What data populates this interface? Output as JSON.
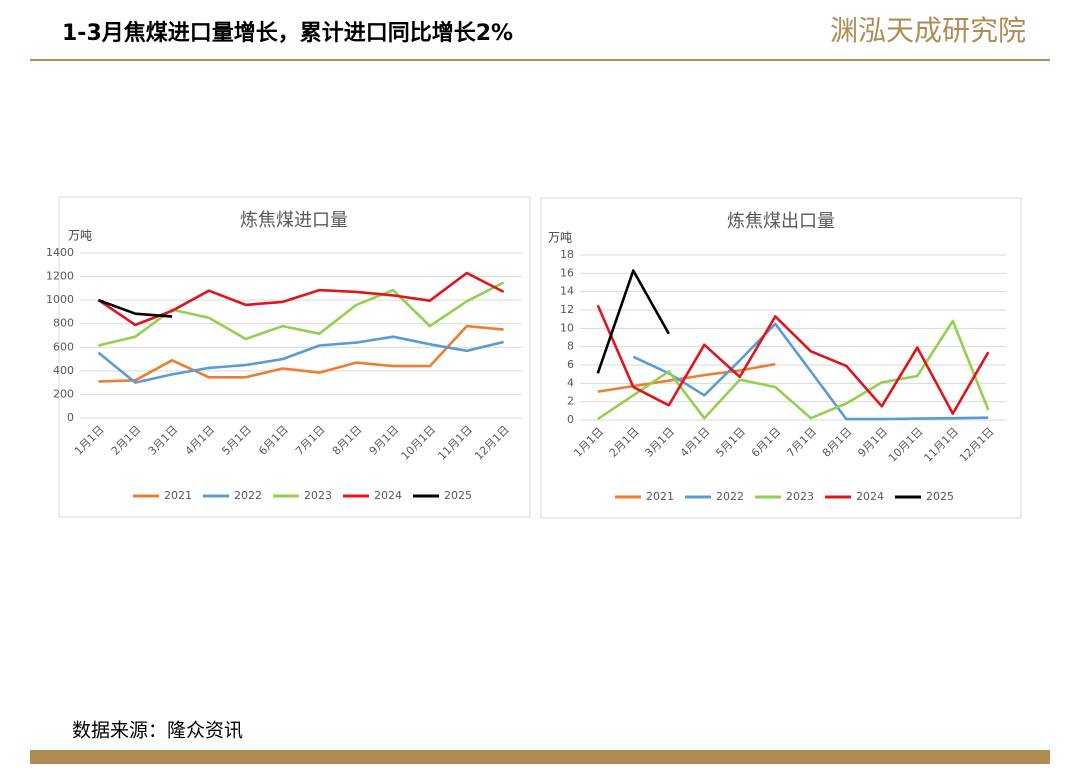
{
  "header": {
    "title": "1-3月焦煤进口量增长，累计进口同比增长2%",
    "logo": "渊泓天成研究院"
  },
  "source": "数据来源：隆众资讯",
  "chart_data": [
    {
      "type": "line",
      "title": "炼焦煤进口量",
      "ylabel": "万吨",
      "categories": [
        "1月1日",
        "2月1日",
        "3月1日",
        "4月1日",
        "5月1日",
        "6月1日",
        "7月1日",
        "8月1日",
        "9月1日",
        "10月1日",
        "11月1日",
        "12月1日"
      ],
      "ylim": [
        0,
        1400
      ],
      "yticks": [
        0,
        200,
        400,
        600,
        800,
        1000,
        1200,
        1400
      ],
      "grid": true,
      "legend": "bottom",
      "series": [
        {
          "name": "2021",
          "color": "#ed7d31",
          "values": [
            310,
            320,
            490,
            345,
            345,
            420,
            385,
            470,
            440,
            440,
            780,
            750
          ]
        },
        {
          "name": "2022",
          "color": "#5b9bd5",
          "values": [
            555,
            300,
            370,
            425,
            450,
            500,
            615,
            640,
            690,
            625,
            570,
            645
          ]
        },
        {
          "name": "2023",
          "color": "#92d050",
          "values": [
            615,
            690,
            920,
            850,
            670,
            780,
            715,
            960,
            1085,
            780,
            990,
            1150
          ]
        },
        {
          "name": "2024",
          "color": "#e2141b",
          "values": [
            1000,
            790,
            910,
            1080,
            960,
            985,
            1085,
            1070,
            1040,
            995,
            1230,
            1070
          ]
        },
        {
          "name": "2025",
          "color": "#000000",
          "values": [
            1000,
            885,
            860,
            null,
            null,
            null,
            null,
            null,
            null,
            null,
            null,
            null
          ]
        }
      ]
    },
    {
      "type": "line",
      "title": "炼焦煤出口量",
      "ylabel": "万吨",
      "categories": [
        "1月1日",
        "2月1日",
        "3月1日",
        "4月1日",
        "5月1日",
        "6月1日",
        "7月1日",
        "8月1日",
        "9月1日",
        "10月1日",
        "11月1日",
        "12月1日"
      ],
      "ylim": [
        0,
        18
      ],
      "yticks": [
        0,
        2,
        4,
        6,
        8,
        10,
        12,
        14,
        16,
        18
      ],
      "grid": true,
      "legend": "bottom",
      "series": [
        {
          "name": "2021",
          "color": "#ed7d31",
          "values": [
            3.1,
            3.7,
            4.3,
            4.9,
            5.4,
            6.1,
            null,
            null,
            null,
            null,
            null,
            null
          ]
        },
        {
          "name": "2022",
          "color": "#5b9bd5",
          "values": [
            null,
            6.9,
            5.1,
            2.7,
            6.5,
            10.5,
            5.3,
            0.1,
            0.1,
            0.15,
            0.2,
            0.25
          ]
        },
        {
          "name": "2023",
          "color": "#92d050",
          "values": [
            0.1,
            2.7,
            5.3,
            0.2,
            4.4,
            3.6,
            0.2,
            1.8,
            4.1,
            4.8,
            10.8,
            1.1
          ]
        },
        {
          "name": "2024",
          "color": "#e2141b",
          "values": [
            12.5,
            3.6,
            1.6,
            8.2,
            4.7,
            11.3,
            7.5,
            5.9,
            1.5,
            7.9,
            0.7,
            7.4
          ]
        },
        {
          "name": "2025",
          "color": "#000000",
          "values": [
            5.1,
            16.3,
            9.4,
            null,
            null,
            null,
            null,
            null,
            null,
            null,
            null,
            null
          ]
        }
      ]
    }
  ]
}
